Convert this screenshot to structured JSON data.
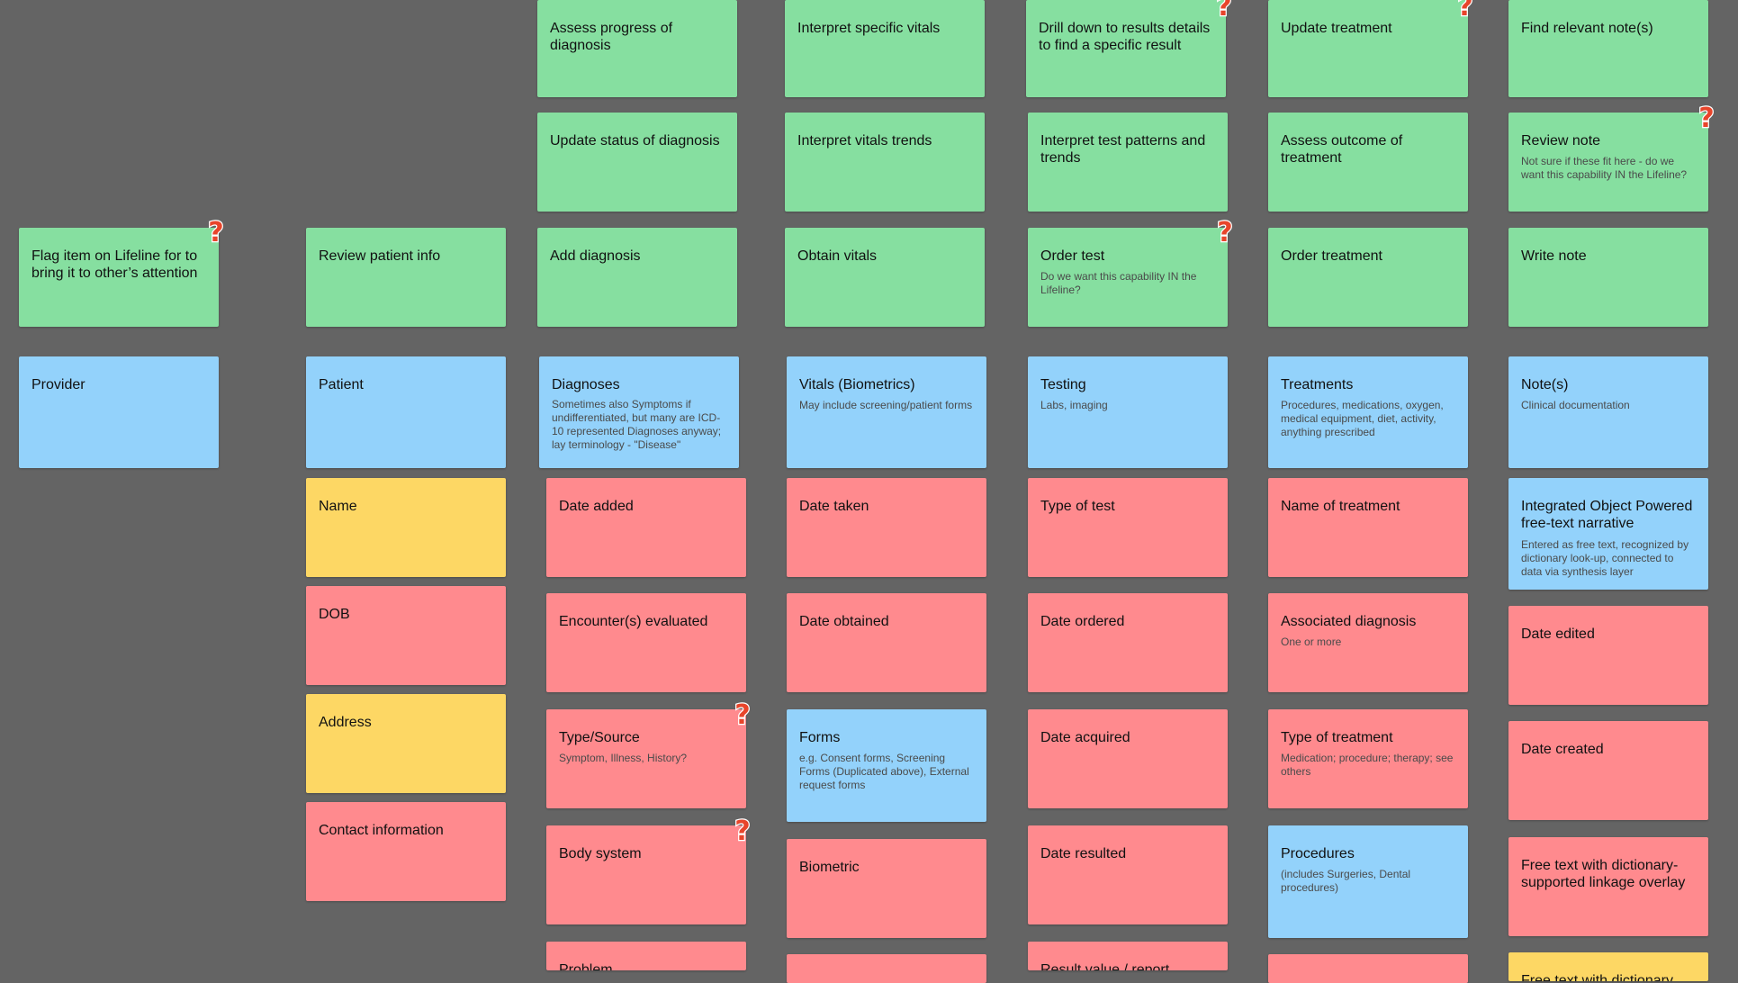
{
  "colors": {
    "canvas": "#646464",
    "capability_green": "#86dfa0",
    "object_blue": "#93d2fb",
    "property_red": "#ff8a8e",
    "property_yellow": "#fdd764",
    "question_mark": "#e8452b"
  },
  "icons": {
    "question": "question-mark-icon"
  },
  "question_mark_text": "?",
  "capabilities": {
    "assess_progress_of_diagnosis": "Assess progress of diagnosis",
    "interpret_specific_vitals": "Interpret specific vitals",
    "drill_down_results": "Drill down to results details to find a specific result",
    "update_treatment": "Update treatment",
    "find_relevant_notes": "Find relevant note(s)",
    "update_status_of_diagnosis": "Update status of diagnosis",
    "interpret_vitals_trends": "Interpret vitals trends",
    "interpret_test_patterns": "Interpret test patterns and trends",
    "assess_outcome_of_treatment": "Assess outcome of treatment",
    "review_note": "Review note",
    "review_note_sub": "Not sure if these fit here - do we want this capability IN the Lifeline?",
    "flag_item": "Flag item on Lifeline for to bring it to other’s attention",
    "review_patient_info": "Review patient info",
    "add_diagnosis": "Add diagnosis",
    "obtain_vitals": "Obtain vitals",
    "order_test": "Order test",
    "order_test_sub": "Do we want this capability IN the Lifeline?",
    "order_treatment": "Order treatment",
    "write_note": "Write note"
  },
  "objects": {
    "provider": "Provider",
    "patient": "Patient",
    "diagnoses": "Diagnoses",
    "diagnoses_sub": "Sometimes also Symptoms if undifferentiated, but many are ICD-10 represented Diagnoses anyway;  lay terminology - \"Disease\"",
    "vitals": "Vitals (Biometrics)",
    "vitals_sub": "May include screening/patient forms",
    "testing": "Testing",
    "testing_sub": "Labs, imaging",
    "treatments": "Treatments",
    "treatments_sub": "Procedures, medications, oxygen, medical equipment, diet, activity, anything prescribed",
    "notes": "Note(s)",
    "notes_sub": "Clinical documentation",
    "integrated_object": "Integrated Object Powered free-text narrative",
    "integrated_object_sub": "Entered as free text, recognized by dictionary look-up, connected to data via synthesis layer",
    "forms": "Forms",
    "forms_sub": "e.g. Consent forms, Screening Forms (Duplicated above), External request forms",
    "procedures": "Procedures",
    "procedures_sub": "(includes Surgeries, Dental procedures)"
  },
  "properties": {
    "name": "Name",
    "dob": "DOB",
    "address": "Address",
    "contact_information": "Contact information",
    "date_added": "Date added",
    "encounters_evaluated": "Encounter(s) evaluated",
    "type_source": "Type/Source",
    "type_source_sub": "Symptom, Illness, History?",
    "body_system": "Body system",
    "problem": "Problem",
    "date_taken": "Date taken",
    "date_obtained": "Date obtained",
    "biometric": "Biometric",
    "type_of_test": "Type of test",
    "date_ordered": "Date ordered",
    "date_acquired": "Date acquired",
    "date_resulted": "Date resulted",
    "result_value_report": "Result value / report",
    "name_of_treatment": "Name of treatment",
    "associated_diagnosis": "Associated diagnosis",
    "associated_diagnosis_sub": "One or more",
    "type_of_treatment": "Type of treatment",
    "type_of_treatment_sub": "Medication; procedure; therapy; see others",
    "date_edited": "Date edited",
    "date_created": "Date created",
    "free_text_linkage": "Free text with dictionary-supported linkage overlay",
    "free_text_dictionary": "Free text with dictionary"
  }
}
